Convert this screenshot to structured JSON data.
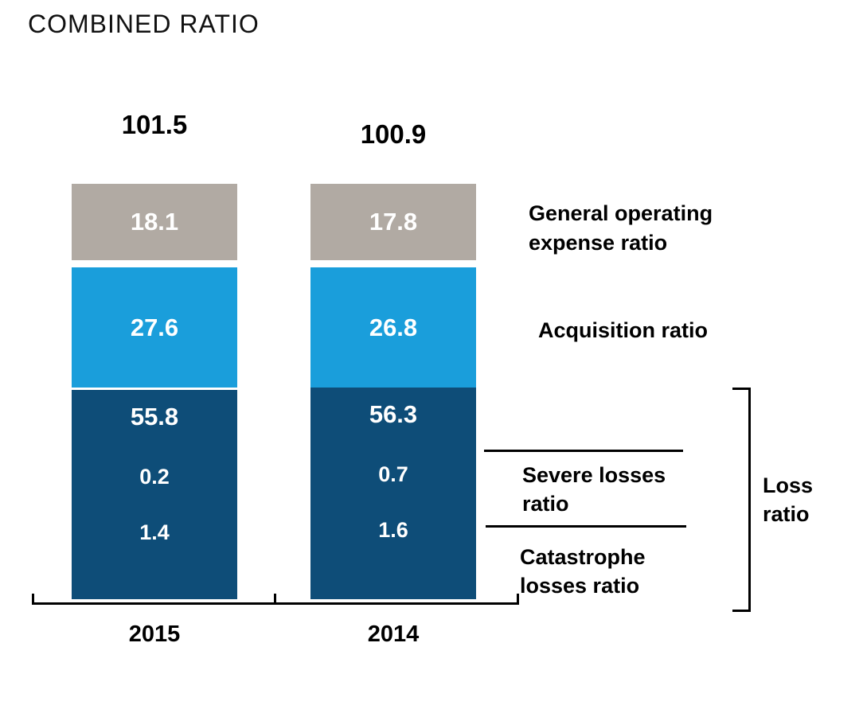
{
  "chart_data": {
    "type": "bar",
    "stacked": true,
    "title": "COMBINED RATIO",
    "categories": [
      "2015",
      "2014"
    ],
    "totals": [
      "101.5",
      "100.9"
    ],
    "series": [
      {
        "name": "General operating expense ratio",
        "color": "#b1aaa3",
        "values": [
          "18.1",
          "17.8"
        ]
      },
      {
        "name": "Acquisition ratio",
        "color": "#1a9edb",
        "values": [
          "27.6",
          "26.8"
        ]
      },
      {
        "name": "Loss ratio",
        "color": "#0e4d78",
        "values": [
          "55.8",
          "56.3"
        ],
        "components": [
          {
            "name": "Severe losses ratio",
            "values": [
              "0.2",
              "0.7"
            ]
          },
          {
            "name": "Catastrophe losses ratio",
            "values": [
              "1.4",
              "1.6"
            ]
          }
        ]
      }
    ],
    "ylim": [
      0,
      101.5
    ],
    "grid": false,
    "legend_position": "right-annotations"
  },
  "annotations": {
    "general_operating_label": "General operating expense ratio",
    "acquisition_label": "Acquisition ratio",
    "severe_label": "Severe losses ratio",
    "catastrophe_label": "Catastrophe losses ratio",
    "loss_ratio_label": "Loss ratio"
  },
  "colors": {
    "general_operating": "#b1aaa3",
    "acquisition": "#1a9edb",
    "loss": "#0e4d78",
    "axis": "#000000",
    "value_text": "#ffffff"
  }
}
